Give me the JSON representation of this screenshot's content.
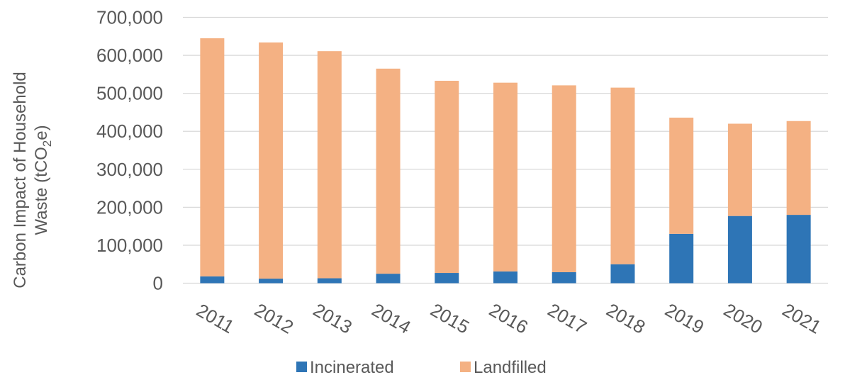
{
  "chart_data": {
    "type": "bar",
    "stacked": true,
    "categories": [
      "2011",
      "2012",
      "2013",
      "2014",
      "2015",
      "2016",
      "2017",
      "2018",
      "2019",
      "2020",
      "2021"
    ],
    "series": [
      {
        "name": "Incinerated",
        "color": "#2E75B6",
        "values": [
          18000,
          12000,
          13000,
          25000,
          27000,
          31000,
          29000,
          50000,
          130000,
          177000,
          180000
        ]
      },
      {
        "name": "Landfilled",
        "color": "#F4B183",
        "values": [
          627000,
          622000,
          598000,
          540000,
          506000,
          497000,
          492000,
          465000,
          306000,
          243000,
          247000
        ]
      }
    ],
    "yticks": [
      "0",
      "100,000",
      "200,000",
      "300,000",
      "400,000",
      "500,000",
      "600,000",
      "700,000"
    ],
    "ylabel_line1": "Carbon Impact of Household",
    "ylabel_line2_prefix": "Waste (tCO",
    "ylabel_sub": "2",
    "ylabel_line2_suffix": "e)",
    "ylim": [
      0,
      700000
    ],
    "grid": true,
    "legend_position": "bottom",
    "gridline_color": "#D9D9D9"
  }
}
